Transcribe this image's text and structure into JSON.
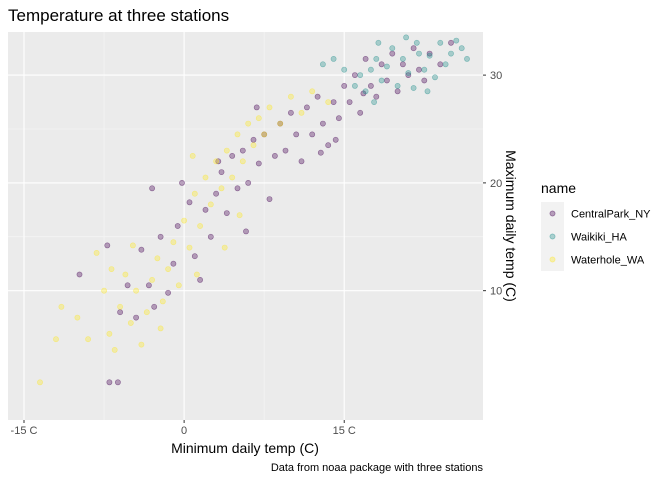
{
  "chart_data": {
    "type": "scatter",
    "title": "Temperature at three stations",
    "xlabel": "Minimum daily temp (C)",
    "ylabel": "Maximum daily temp (C)",
    "caption": "Data from noaa package with three stations",
    "xlim": [
      -16.5,
      28
    ],
    "ylim": [
      -2,
      34
    ],
    "x_ticks": [
      {
        "value": -15,
        "label": "-15 C"
      },
      {
        "value": 0,
        "label": "0"
      },
      {
        "value": 15,
        "label": "15 C"
      }
    ],
    "y_ticks": [
      {
        "value": 10,
        "label": "10"
      },
      {
        "value": 20,
        "label": "20"
      },
      {
        "value": 30,
        "label": "30"
      }
    ],
    "y_axis_position": "right",
    "grid": true,
    "legend": {
      "title": "name",
      "placement": "right"
    },
    "series": [
      {
        "name": "CentralPark_NY",
        "color": "#440154",
        "points": [
          [
            -9.8,
            11.5
          ],
          [
            -7.2,
            14.2
          ],
          [
            -7.0,
            1.5
          ],
          [
            -6.2,
            1.5
          ],
          [
            -6.0,
            8.0
          ],
          [
            -5.3,
            10.5
          ],
          [
            -4.5,
            7.5
          ],
          [
            -4.0,
            13.8
          ],
          [
            -3.3,
            10.5
          ],
          [
            -2.8,
            8.5
          ],
          [
            -2.2,
            15.0
          ],
          [
            -1.5,
            9.8
          ],
          [
            -1.0,
            12.5
          ],
          [
            -0.6,
            16.0
          ],
          [
            -0.2,
            20.0
          ],
          [
            0.5,
            18.2
          ],
          [
            1.0,
            13.2
          ],
          [
            1.5,
            11.0
          ],
          [
            2.0,
            17.5
          ],
          [
            2.5,
            15.0
          ],
          [
            3.0,
            19.0
          ],
          [
            3.5,
            21.0
          ],
          [
            4.0,
            17.2
          ],
          [
            4.5,
            22.5
          ],
          [
            5.0,
            19.5
          ],
          [
            5.5,
            23.0
          ],
          [
            6.0,
            20.0
          ],
          [
            6.5,
            24.0
          ],
          [
            7.0,
            21.8
          ],
          [
            7.5,
            24.5
          ],
          [
            8.0,
            18.5
          ],
          [
            8.5,
            22.5
          ],
          [
            9.0,
            25.5
          ],
          [
            9.5,
            23.0
          ],
          [
            10.0,
            26.5
          ],
          [
            10.5,
            24.5
          ],
          [
            11.0,
            22.0
          ],
          [
            11.5,
            27.0
          ],
          [
            12.0,
            24.5
          ],
          [
            12.5,
            28.0
          ],
          [
            13.0,
            25.5
          ],
          [
            13.5,
            23.5
          ],
          [
            14.0,
            27.5
          ],
          [
            14.5,
            26.0
          ],
          [
            15.0,
            29.0
          ],
          [
            15.5,
            27.5
          ],
          [
            16.0,
            30.0
          ],
          [
            16.5,
            26.5
          ],
          [
            17.0,
            31.5
          ],
          [
            17.5,
            29.0
          ],
          [
            18.0,
            28.0
          ],
          [
            18.5,
            31.0
          ],
          [
            19.0,
            29.5
          ],
          [
            19.5,
            32.0
          ],
          [
            20.0,
            28.5
          ],
          [
            20.5,
            31.0
          ],
          [
            21.0,
            30.0
          ],
          [
            21.5,
            32.5
          ],
          [
            22.0,
            30.5
          ],
          [
            22.5,
            29.5
          ],
          [
            23.0,
            32.0
          ],
          [
            24.0,
            31.0
          ],
          [
            25.0,
            33.0
          ],
          [
            14.2,
            24.0
          ],
          [
            16.8,
            28.3
          ],
          [
            12.8,
            22.8
          ],
          [
            6.8,
            27.0
          ],
          [
            3.2,
            22.0
          ],
          [
            -3.0,
            19.5
          ],
          [
            5.8,
            15.5
          ]
        ]
      },
      {
        "name": "Waikiki_HA",
        "color": "#21908C",
        "points": [
          [
            13.0,
            31.0
          ],
          [
            14.0,
            31.5
          ],
          [
            15.0,
            30.5
          ],
          [
            16.0,
            29.0
          ],
          [
            16.5,
            30.0
          ],
          [
            17.0,
            28.5
          ],
          [
            17.5,
            30.5
          ],
          [
            18.0,
            31.5
          ],
          [
            18.5,
            29.5
          ],
          [
            19.0,
            30.8
          ],
          [
            19.5,
            32.5
          ],
          [
            20.0,
            29.0
          ],
          [
            20.5,
            31.5
          ],
          [
            21.0,
            30.2
          ],
          [
            21.5,
            28.8
          ],
          [
            22.0,
            32.0
          ],
          [
            22.5,
            30.5
          ],
          [
            23.0,
            31.8
          ],
          [
            23.5,
            29.8
          ],
          [
            24.0,
            33.0
          ],
          [
            24.5,
            31.0
          ],
          [
            25.0,
            32.0
          ],
          [
            25.5,
            33.2
          ],
          [
            26.0,
            32.5
          ],
          [
            26.5,
            31.5
          ],
          [
            18.2,
            33.0
          ],
          [
            20.8,
            33.5
          ],
          [
            17.8,
            27.5
          ],
          [
            22.8,
            28.5
          ],
          [
            21.8,
            33.0
          ]
        ]
      },
      {
        "name": "Waterhole_WA",
        "color": "#FDE725",
        "points": [
          [
            -13.5,
            1.5
          ],
          [
            -12.0,
            5.5
          ],
          [
            -11.5,
            8.5
          ],
          [
            -10.0,
            7.5
          ],
          [
            -9.0,
            5.5
          ],
          [
            -7.5,
            10.0
          ],
          [
            -7.0,
            6.0
          ],
          [
            -6.5,
            4.5
          ],
          [
            -6.0,
            8.5
          ],
          [
            -5.5,
            11.5
          ],
          [
            -5.0,
            7.0
          ],
          [
            -4.5,
            10.0
          ],
          [
            -4.0,
            5.0
          ],
          [
            -3.5,
            8.0
          ],
          [
            -3.0,
            11.0
          ],
          [
            -2.5,
            13.0
          ],
          [
            -2.0,
            9.0
          ],
          [
            -1.5,
            12.0
          ],
          [
            -1.0,
            14.5
          ],
          [
            -0.5,
            10.5
          ],
          [
            0.0,
            16.5
          ],
          [
            0.5,
            14.0
          ],
          [
            1.0,
            19.0
          ],
          [
            1.5,
            16.0
          ],
          [
            2.0,
            20.5
          ],
          [
            2.5,
            18.0
          ],
          [
            3.0,
            22.0
          ],
          [
            3.5,
            19.5
          ],
          [
            4.0,
            23.0
          ],
          [
            4.5,
            20.5
          ],
          [
            5.0,
            24.5
          ],
          [
            5.5,
            22.0
          ],
          [
            6.0,
            25.5
          ],
          [
            6.5,
            23.5
          ],
          [
            7.0,
            26.0
          ],
          [
            7.5,
            24.5
          ],
          [
            8.0,
            27.0
          ],
          [
            9.0,
            25.5
          ],
          [
            10.0,
            28.0
          ],
          [
            11.0,
            26.5
          ],
          [
            12.0,
            28.5
          ],
          [
            13.5,
            27.5
          ],
          [
            -6.8,
            12.0
          ],
          [
            -2.2,
            6.5
          ],
          [
            1.2,
            11.5
          ],
          [
            -8.2,
            13.5
          ],
          [
            3.8,
            14.0
          ],
          [
            -4.8,
            14.2
          ],
          [
            0.8,
            22.5
          ],
          [
            5.2,
            17.0
          ]
        ]
      }
    ]
  }
}
